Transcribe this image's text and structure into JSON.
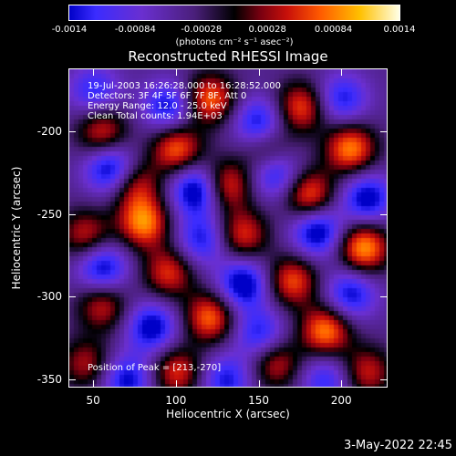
{
  "colorbar": {
    "ticks": [
      "-0.0014",
      "-0.00084",
      "-0.00028",
      "0.00028",
      "0.00084",
      "0.0014"
    ],
    "unit": "(photons cm⁻² s⁻¹ asec⁻²)"
  },
  "title": "Reconstructed RHESSI Image",
  "info": {
    "time": "19-Jul-2003 16:26:28.000 to 16:28:52.000",
    "detectors": "Detectors: 3F 4F 5F 6F 7F 8F, Att 0",
    "energy": "Energy Range: 12.0 - 25.0 keV",
    "clean": "Clean     Total counts: 1.94E+03",
    "peak": "Position of Peak = [213,-270]"
  },
  "axes": {
    "xlabel": "Heliocentric X (arcsec)",
    "ylabel": "Heliocentric Y (arcsec)"
  },
  "chart_data": {
    "type": "heatmap",
    "title": "Reconstructed RHESSI Image",
    "xlabel": "Heliocentric X (arcsec)",
    "ylabel": "Heliocentric Y (arcsec)",
    "xlim": [
      35,
      228
    ],
    "ylim": [
      -355,
      -162
    ],
    "x_ticks": [
      50,
      100,
      150,
      200
    ],
    "y_ticks": [
      -200,
      -250,
      -300,
      -350
    ],
    "colorbar_range": [
      -0.0014,
      0.0014
    ],
    "peak": [
      213,
      -270
    ],
    "bright_sources": [
      {
        "x": 120,
        "y": -180,
        "level": 0.0012
      },
      {
        "x": 175,
        "y": -185,
        "level": 0.0011
      },
      {
        "x": 55,
        "y": -200,
        "level": 0.001
      },
      {
        "x": 100,
        "y": -210,
        "level": 0.0012
      },
      {
        "x": 155,
        "y": -210,
        "level": 0.0008
      },
      {
        "x": 205,
        "y": -210,
        "level": 0.0013
      },
      {
        "x": 75,
        "y": -232,
        "level": 0.0009
      },
      {
        "x": 130,
        "y": -232,
        "level": 0.0011
      },
      {
        "x": 180,
        "y": -238,
        "level": 0.0012
      },
      {
        "x": 45,
        "y": -262,
        "level": 0.0009
      },
      {
        "x": 80,
        "y": -255,
        "level": 0.0013
      },
      {
        "x": 140,
        "y": -262,
        "level": 0.001
      },
      {
        "x": 213,
        "y": -270,
        "level": 0.0014
      },
      {
        "x": 95,
        "y": -285,
        "level": 0.001
      },
      {
        "x": 170,
        "y": -290,
        "level": 0.0011
      },
      {
        "x": 55,
        "y": -305,
        "level": 0.0009
      },
      {
        "x": 120,
        "y": -312,
        "level": 0.0012
      },
      {
        "x": 190,
        "y": -320,
        "level": 0.0013
      },
      {
        "x": 45,
        "y": -340,
        "level": 0.0008
      },
      {
        "x": 100,
        "y": -345,
        "level": 0.001
      },
      {
        "x": 160,
        "y": -340,
        "level": 0.0009
      },
      {
        "x": 215,
        "y": -345,
        "level": 0.0009
      }
    ],
    "dark_sources": [
      {
        "x": 50,
        "y": -175,
        "level": -0.0008
      },
      {
        "x": 95,
        "y": -185,
        "level": -0.001
      },
      {
        "x": 150,
        "y": -195,
        "level": -0.0011
      },
      {
        "x": 200,
        "y": -180,
        "level": -0.0009
      },
      {
        "x": 60,
        "y": -222,
        "level": -0.0012
      },
      {
        "x": 112,
        "y": -235,
        "level": -0.0013
      },
      {
        "x": 160,
        "y": -225,
        "level": -0.001
      },
      {
        "x": 215,
        "y": -240,
        "level": -0.0011
      },
      {
        "x": 115,
        "y": -265,
        "level": -0.0009
      },
      {
        "x": 185,
        "y": -260,
        "level": -0.0012
      },
      {
        "x": 55,
        "y": -282,
        "level": -0.0011
      },
      {
        "x": 140,
        "y": -292,
        "level": -0.0012
      },
      {
        "x": 205,
        "y": -298,
        "level": -0.001
      },
      {
        "x": 85,
        "y": -318,
        "level": -0.0011
      },
      {
        "x": 150,
        "y": -322,
        "level": -0.0009
      },
      {
        "x": 70,
        "y": -350,
        "level": -0.001
      },
      {
        "x": 130,
        "y": -350,
        "level": -0.0009
      },
      {
        "x": 190,
        "y": -350,
        "level": -0.0008
      }
    ]
  },
  "timestamp": "3-May-2022 22:45"
}
